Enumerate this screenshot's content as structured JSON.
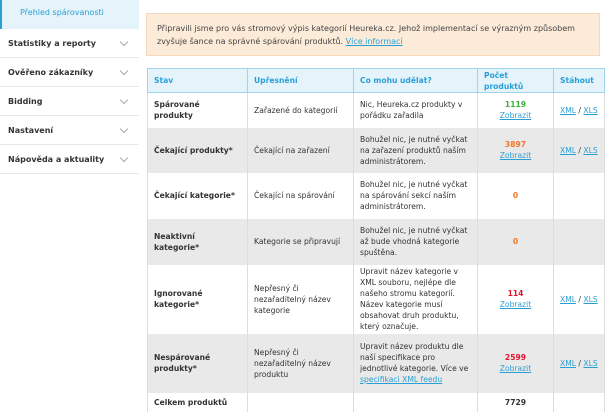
{
  "sidebar": {
    "active": "Přehled spárovanosti",
    "items": [
      {
        "label": "Statistiky a reporty"
      },
      {
        "label": "Ověřeno zákazníky"
      },
      {
        "label": "Bidding"
      },
      {
        "label": "Nastavení"
      },
      {
        "label": "Nápověda a aktuality"
      }
    ]
  },
  "notice": {
    "text": "Připravili jsme pro vás stromový výpis kategorií Heureka.cz. Jehož implementací se výrazným způsobem zvyšuje šance na správné spárování produktů.",
    "link": "Více informací"
  },
  "table": {
    "headers": [
      "Stav",
      "Upřesnění",
      "Co mohu udělat?",
      "Počet produktů",
      "Stáhout"
    ],
    "rows": [
      {
        "stav": "Spárované produkty",
        "upr": "Zařazené do kategorií",
        "co": "Nic, Heureka.cz produkty v pořádku zařadila",
        "count": "1119",
        "color": "#3cb13c",
        "show": "Zobrazit",
        "xml": "XML",
        "xls": "XLS"
      },
      {
        "stav": "Čekající produkty*",
        "upr": "Čekající na zařazení",
        "co": "Bohužel nic, je nutné vyčkat na zařazení produktů naším administrátorem.",
        "count": "3897",
        "color": "#f0762a",
        "show": "Zobrazit",
        "xml": "XML",
        "xls": "XLS"
      },
      {
        "stav": "Čekající kategorie*",
        "upr": "Čekající na spárování",
        "co": "Bohužel nic, je nutné vyčkat na spárování sekcí naším administrátorem.",
        "count": "0",
        "color": "#f0762a"
      },
      {
        "stav": "Neaktivní kategorie*",
        "upr": "Kategorie se připravují",
        "co": "Bohužel nic, je nutné vyčkat až bude vhodná kategorie spuštěna.",
        "count": "0",
        "color": "#f0762a"
      },
      {
        "stav": "Ignorované kategorie*",
        "upr": "Nepřesný či nezařaditelný název kategorie",
        "co": "Upravit název kategorie v XML souboru, nejlépe dle našeho stromu kategorií. Název kategorie musí obsahovat druh produktu, který označuje.",
        "count": "114",
        "color": "#e2132e",
        "show": "Zobrazit",
        "xml": "XML",
        "xls": "XLS"
      },
      {
        "stav": "Nespárované produkty*",
        "upr": "Nepřesný či nezařaditelný název produktu",
        "co": "Upravit název produktu dle naší specifikace pro jednotlivé kategorie. Více ve",
        "co_link": "specifikaci XML feedu",
        "count": "2599",
        "color": "#e2132e",
        "show": "Zobrazit",
        "xml": "XML",
        "xls": "XLS"
      }
    ],
    "total": {
      "label": "Celkem produktů",
      "count": "7729"
    },
    "sep": "/"
  }
}
